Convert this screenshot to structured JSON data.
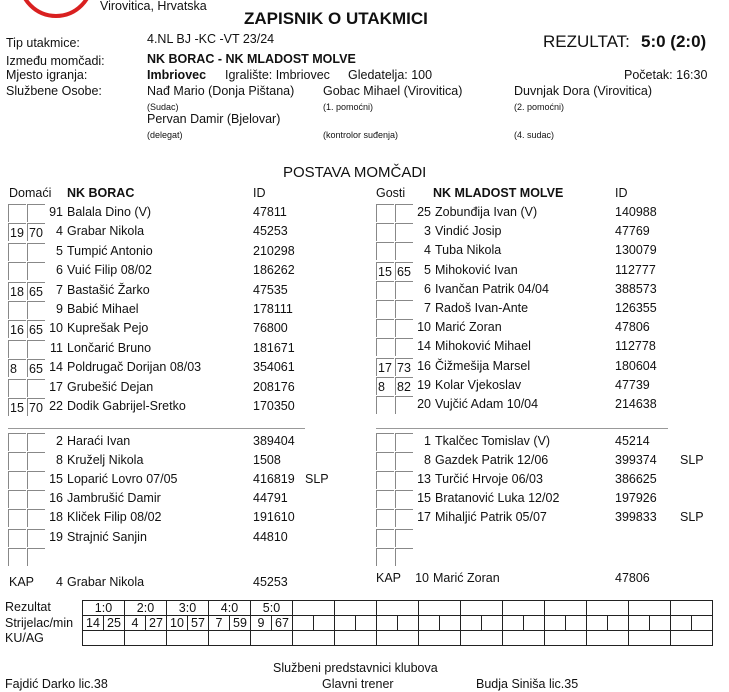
{
  "header": {
    "location": "Virovitica, Hrvatska",
    "title": "ZAPISNIK O UTAKMICI",
    "result_label": "REZULTAT:",
    "result": "5:0 (2:0)"
  },
  "info": {
    "tip_label": "Tip utakmice:",
    "tip": "4.NL BJ -KC -VT 23/24",
    "teams_label": "Između momčadi:",
    "teams": "NK BORAC - NK MLADOST MOLVE",
    "venue_label": "Mjesto igranja:",
    "venue": "Imbriovec",
    "field": "Igralište: Imbriovec",
    "spectators": "Gledatelja: 100",
    "start": "Početak: 16:30",
    "officials_label": "Službene Osobe:",
    "officials": [
      {
        "name": "Nađ Mario (Donja Pištana)",
        "role": "(Sudac)"
      },
      {
        "name": "Gobac Mihael (Virovitica)",
        "role": "(1. pomoćni)"
      },
      {
        "name": "Duvnjak Dora (Virovitica)",
        "role": "(2. pomoćni)"
      },
      {
        "name": "Pervan Damir (Bjelovar)",
        "role": "(delegat)"
      },
      {
        "name": "",
        "role": "(kontrolor suđenja)"
      },
      {
        "name": "",
        "role": "(4. sudac)"
      }
    ]
  },
  "lineup_title": "POSTAVA MOMČADI",
  "home": {
    "label": "Domaći",
    "team": "NK BORAC",
    "id_label": "ID",
    "starters": [
      [
        "",
        "",
        "91",
        "Balala Dino   (V)",
        "47811",
        ""
      ],
      [
        "19",
        "70",
        "4",
        "Grabar Nikola",
        "45253",
        ""
      ],
      [
        "",
        "",
        "5",
        "Tumpić Antonio",
        "210298",
        ""
      ],
      [
        "",
        "",
        "6",
        "Vuić Filip 08/02",
        "186262",
        ""
      ],
      [
        "18",
        "65",
        "7",
        "Bastašić Žarko",
        "47535",
        ""
      ],
      [
        "",
        "",
        "9",
        "Babić Mihael",
        "178111",
        ""
      ],
      [
        "16",
        "65",
        "10",
        "Kuprešak Pejo",
        "76800",
        ""
      ],
      [
        "",
        "",
        "11",
        "Lončarić Bruno",
        "181671",
        ""
      ],
      [
        "8",
        "65",
        "14",
        "Poldrugač Dorijan 08/03",
        "354061",
        ""
      ],
      [
        "",
        "",
        "17",
        "Grubešić Dejan",
        "208176",
        ""
      ],
      [
        "15",
        "70",
        "22",
        "Dodik Gabrijel-Sretko",
        "170350",
        ""
      ]
    ],
    "subs": [
      [
        "",
        "",
        "2",
        "Haraći Ivan",
        "389404",
        ""
      ],
      [
        "",
        "",
        "8",
        "Kruželj Nikola",
        "1508",
        ""
      ],
      [
        "",
        "",
        "15",
        "Loparić Lovro 07/05",
        "416819",
        "SLP"
      ],
      [
        "",
        "",
        "16",
        "Jambrušić Damir",
        "44791",
        ""
      ],
      [
        "",
        "",
        "18",
        "Kliček Filip 08/02",
        "191610",
        ""
      ],
      [
        "",
        "",
        "19",
        "Strajnić Sanjin",
        "44810",
        ""
      ],
      [
        "",
        "",
        "",
        "",
        "",
        ""
      ]
    ],
    "captain_label": "KAP",
    "captain_num": "4",
    "captain": "Grabar Nikola",
    "captain_id": "45253"
  },
  "away": {
    "label": "Gosti",
    "team": "NK MLADOST MOLVE",
    "id_label": "ID",
    "starters": [
      [
        "",
        "",
        "25",
        "Zobunđija Ivan   (V)",
        "140988",
        ""
      ],
      [
        "",
        "",
        "3",
        "Vindić Josip",
        "47769",
        ""
      ],
      [
        "",
        "",
        "4",
        "Tuba Nikola",
        "130079",
        ""
      ],
      [
        "15",
        "65",
        "5",
        "Mihoković Ivan",
        "112777",
        ""
      ],
      [
        "",
        "",
        "6",
        "Ivančan Patrik 04/04",
        "388573",
        ""
      ],
      [
        "",
        "",
        "7",
        "Radoš Ivan-Ante",
        "126355",
        ""
      ],
      [
        "",
        "",
        "10",
        "Marić Zoran",
        "47806",
        ""
      ],
      [
        "",
        "",
        "14",
        "Mihoković Mihael",
        "112778",
        ""
      ],
      [
        "17",
        "73",
        "16",
        "Čižmešija Marsel",
        "180604",
        ""
      ],
      [
        "8",
        "82",
        "19",
        "Kolar Vjekoslav",
        "47739",
        ""
      ],
      [
        "",
        "",
        "20",
        "Vujčić Adam 10/04",
        "214638",
        ""
      ]
    ],
    "subs": [
      [
        "",
        "",
        "1",
        "Tkalčec Tomislav  (V)",
        "45214",
        ""
      ],
      [
        "",
        "",
        "8",
        "Gazdek Patrik 12/06",
        "399374",
        "SLP"
      ],
      [
        "",
        "",
        "13",
        "Turčić Hrvoje 06/03",
        "386625",
        ""
      ],
      [
        "",
        "",
        "15",
        "Bratanović Luka 12/02",
        "197926",
        ""
      ],
      [
        "",
        "",
        "17",
        "Mihaljić Patrik 05/07",
        "399833",
        "SLP"
      ],
      [
        "",
        "",
        "",
        "",
        "",
        ""
      ],
      [
        "",
        "",
        "",
        "",
        "",
        ""
      ]
    ],
    "captain_label": "KAP",
    "captain_num": "10",
    "captain": "Marić Zoran",
    "captain_id": "47806"
  },
  "scores": {
    "row_labels": [
      "Rezultat",
      "Strijelac/min",
      "KU/AG"
    ],
    "results": [
      "1:0",
      "2:0",
      "3:0",
      "4:0",
      "5:0"
    ],
    "scorers": [
      "14",
      "25",
      "4",
      "27",
      "10",
      "57",
      "7",
      "59",
      "9",
      "67"
    ]
  },
  "footer": {
    "title": "Službeni predstavnici klubova",
    "home_rep": "Fajdić Darko lic.38",
    "role": "Glavni trener",
    "away_rep": "Budja Siniša lic.35"
  },
  "colors": {
    "logo_red": "#d92020"
  }
}
